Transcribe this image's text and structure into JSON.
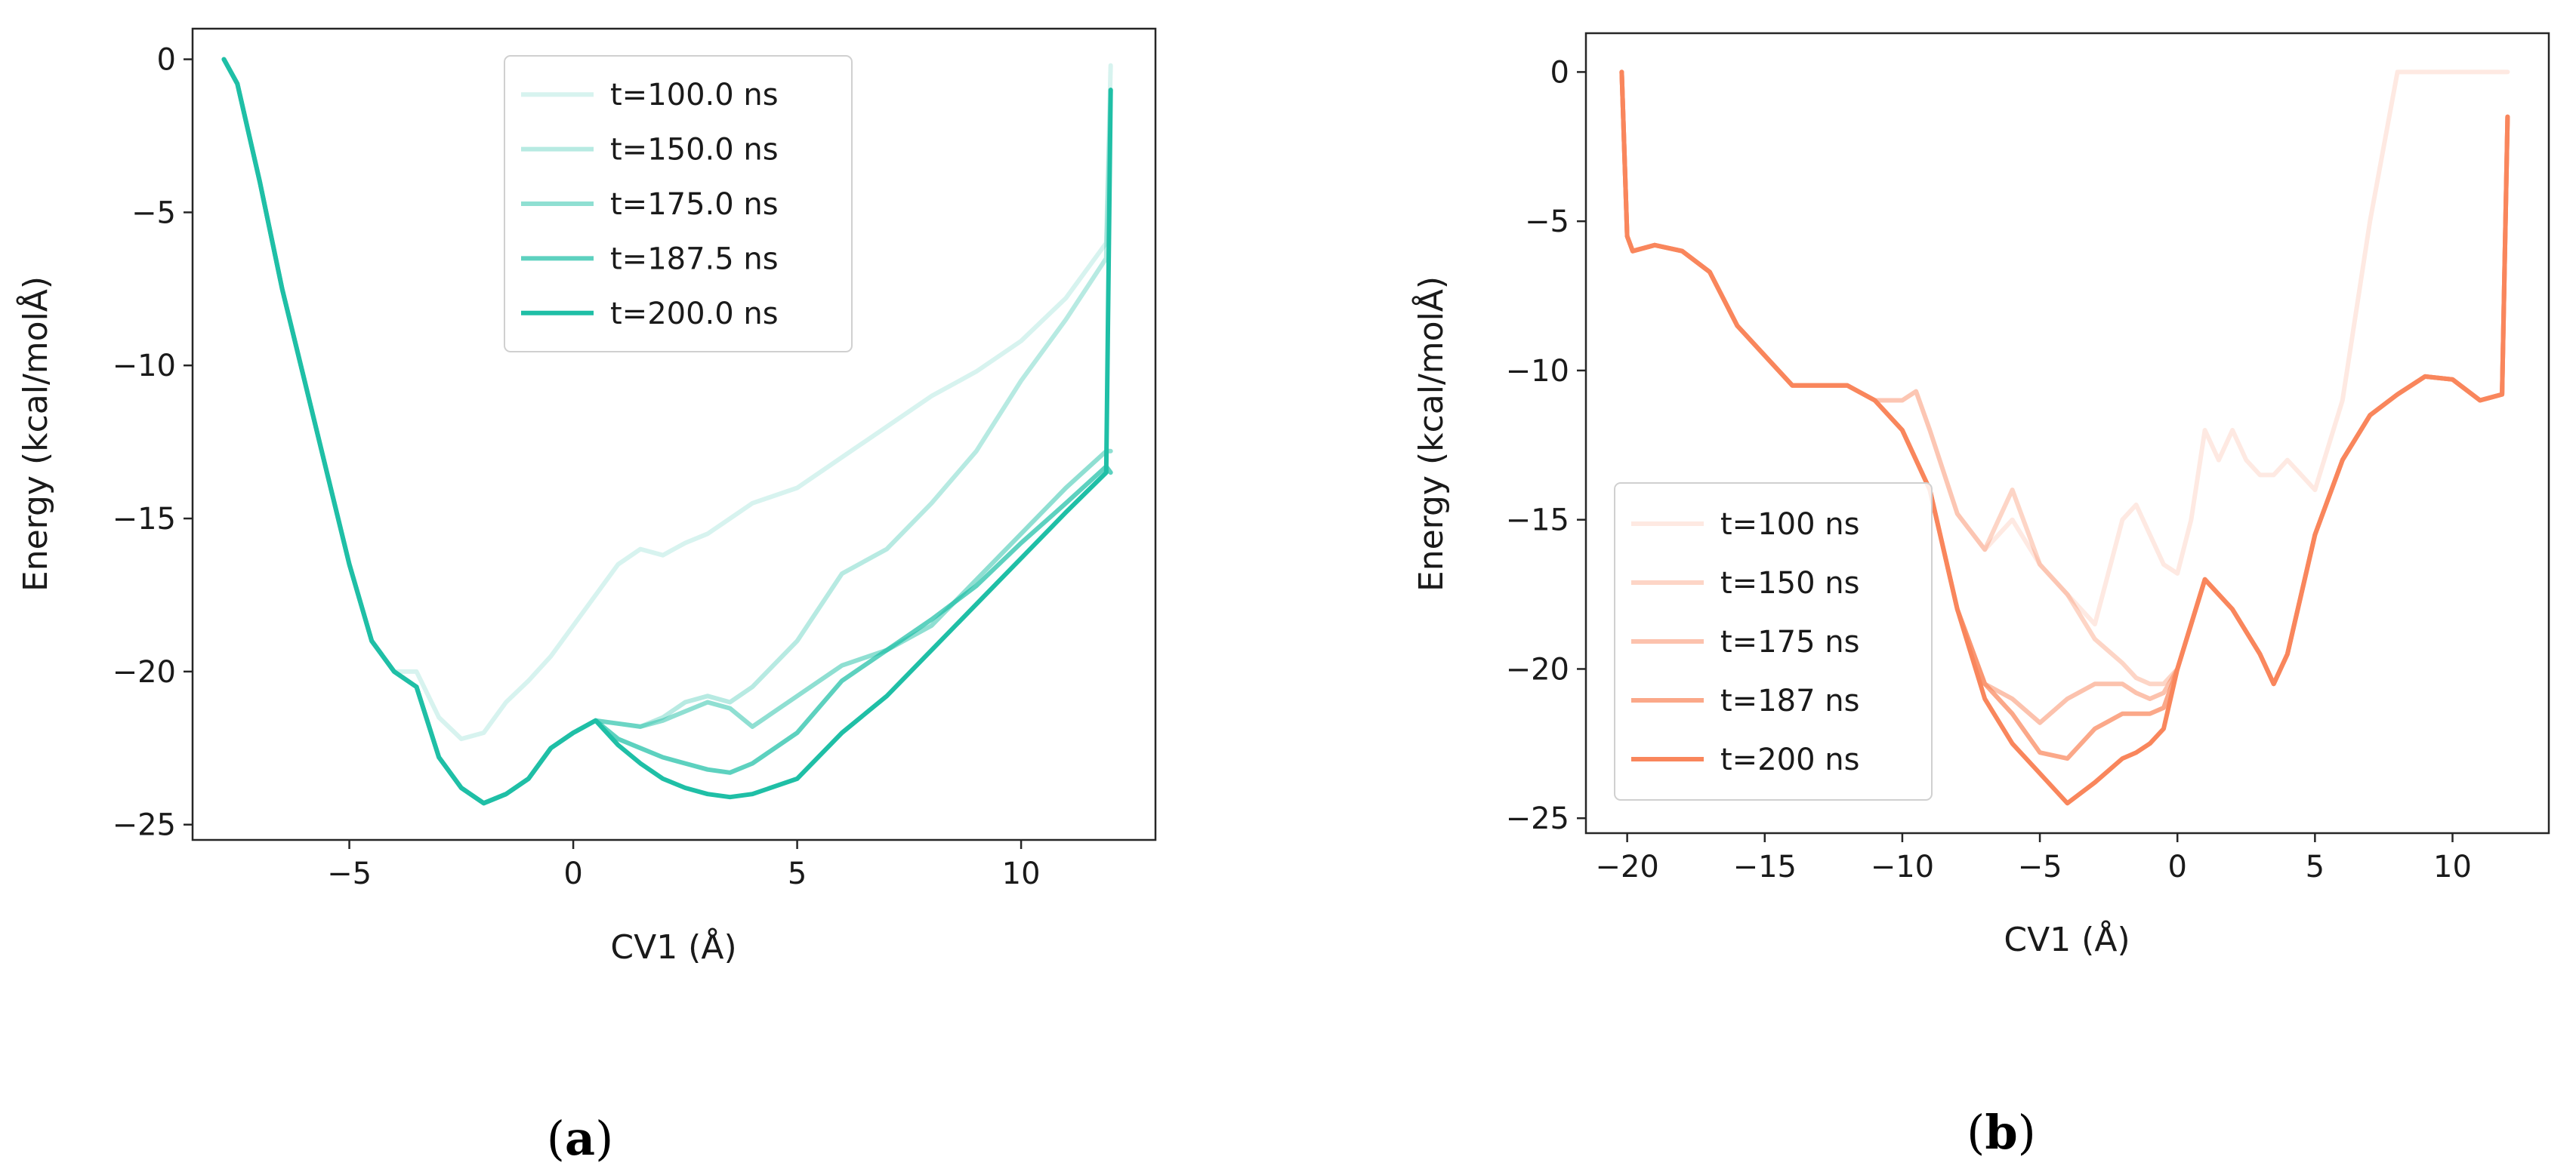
{
  "figure": {
    "panel_a_label": "a",
    "panel_b_label": "b"
  },
  "chart_data": [
    {
      "type": "line",
      "panel": "a",
      "title": "",
      "xlabel": "CV1 (Å)",
      "ylabel": "Energy (kcal/molÅ)",
      "xlim": [
        -8.5,
        13.0
      ],
      "ylim": [
        -25.5,
        1.0
      ],
      "xticks": [
        -5,
        0,
        5,
        10
      ],
      "yticks": [
        0,
        -5,
        -10,
        -15,
        -20,
        -25
      ],
      "grid": false,
      "legend_position": "top-center",
      "base_color": "#1fbfa6",
      "series": [
        {
          "name": "t=100.0 ns",
          "opacity": 0.18,
          "x": [
            -7.8,
            -7.5,
            -7.0,
            -6.5,
            -6.0,
            -5.5,
            -5.0,
            -4.5,
            -4.0,
            -3.5,
            -3.0,
            -2.5,
            -2.0,
            -1.5,
            -1.0,
            -0.5,
            0.0,
            0.5,
            1.0,
            1.5,
            2.0,
            2.5,
            3.0,
            3.5,
            4.0,
            5.0,
            6.0,
            7.0,
            8.0,
            9.0,
            10.0,
            11.0,
            11.9,
            12.0
          ],
          "values": [
            0.0,
            -0.8,
            -4.0,
            -7.5,
            -10.5,
            -13.5,
            -16.5,
            -19.0,
            -20.0,
            -20.0,
            -21.5,
            -22.2,
            -22.0,
            -21.0,
            -20.3,
            -19.5,
            -18.5,
            -17.5,
            -16.5,
            -16.0,
            -16.2,
            -15.8,
            -15.5,
            -15.0,
            -14.5,
            -14.0,
            -13.0,
            -12.0,
            -11.0,
            -10.2,
            -9.2,
            -7.8,
            -6.0,
            -0.2
          ]
        },
        {
          "name": "t=150.0 ns",
          "opacity": 0.32,
          "x": [
            -7.8,
            -7.5,
            -7.0,
            -6.5,
            -6.0,
            -5.5,
            -5.0,
            -4.5,
            -4.0,
            -3.5,
            -3.0,
            -2.5,
            -2.0,
            -1.5,
            -1.0,
            -0.5,
            0.0,
            0.5,
            1.0,
            1.5,
            2.0,
            2.5,
            3.0,
            3.5,
            4.0,
            5.0,
            6.0,
            7.0,
            8.0,
            9.0,
            10.0,
            11.0,
            11.9,
            12.0
          ],
          "values": [
            0.0,
            -0.8,
            -4.0,
            -7.5,
            -10.5,
            -13.5,
            -16.5,
            -19.0,
            -20.0,
            -20.5,
            -22.8,
            -23.8,
            -24.3,
            -24.0,
            -23.5,
            -22.5,
            -22.0,
            -21.6,
            -21.7,
            -21.8,
            -21.5,
            -21.0,
            -20.8,
            -21.0,
            -20.5,
            -19.0,
            -16.8,
            -16.0,
            -14.5,
            -12.8,
            -10.5,
            -8.5,
            -6.5,
            -1.0
          ]
        },
        {
          "name": "t=175.0 ns",
          "opacity": 0.5,
          "x": [
            -7.8,
            -7.5,
            -7.0,
            -6.5,
            -6.0,
            -5.5,
            -5.0,
            -4.5,
            -4.0,
            -3.5,
            -3.0,
            -2.5,
            -2.0,
            -1.5,
            -1.0,
            -0.5,
            0.0,
            0.5,
            1.0,
            1.5,
            2.0,
            2.5,
            3.0,
            3.5,
            4.0,
            5.0,
            6.0,
            7.0,
            8.0,
            9.0,
            10.0,
            11.0,
            11.9,
            12.0
          ],
          "values": [
            0.0,
            -0.8,
            -4.0,
            -7.5,
            -10.5,
            -13.5,
            -16.5,
            -19.0,
            -20.0,
            -20.5,
            -22.8,
            -23.8,
            -24.3,
            -24.0,
            -23.5,
            -22.5,
            -22.0,
            -21.6,
            -21.7,
            -21.8,
            -21.6,
            -21.3,
            -21.0,
            -21.2,
            -21.8,
            -20.8,
            -19.8,
            -19.3,
            -18.5,
            -17.0,
            -15.5,
            -14.0,
            -12.8,
            -12.8
          ]
        },
        {
          "name": "t=187.5 ns",
          "opacity": 0.72,
          "x": [
            -7.8,
            -7.5,
            -7.0,
            -6.5,
            -6.0,
            -5.5,
            -5.0,
            -4.5,
            -4.0,
            -3.5,
            -3.0,
            -2.5,
            -2.0,
            -1.5,
            -1.0,
            -0.5,
            0.0,
            0.5,
            1.0,
            1.5,
            2.0,
            2.5,
            3.0,
            3.5,
            4.0,
            5.0,
            6.0,
            7.0,
            8.0,
            9.0,
            10.0,
            11.0,
            11.9,
            12.0
          ],
          "values": [
            0.0,
            -0.8,
            -4.0,
            -7.5,
            -10.5,
            -13.5,
            -16.5,
            -19.0,
            -20.0,
            -20.5,
            -22.8,
            -23.8,
            -24.3,
            -24.0,
            -23.5,
            -22.5,
            -22.0,
            -21.6,
            -22.2,
            -22.5,
            -22.8,
            -23.0,
            -23.2,
            -23.3,
            -23.0,
            -22.0,
            -20.3,
            -19.3,
            -18.3,
            -17.2,
            -15.8,
            -14.5,
            -13.3,
            -13.5
          ]
        },
        {
          "name": "t=200.0 ns",
          "opacity": 1.0,
          "x": [
            -7.8,
            -7.5,
            -7.0,
            -6.5,
            -6.0,
            -5.5,
            -5.0,
            -4.5,
            -4.0,
            -3.5,
            -3.0,
            -2.5,
            -2.0,
            -1.5,
            -1.0,
            -0.5,
            0.0,
            0.5,
            1.0,
            1.5,
            2.0,
            2.5,
            3.0,
            3.5,
            4.0,
            5.0,
            6.0,
            7.0,
            8.0,
            9.0,
            10.0,
            11.0,
            11.9,
            12.0
          ],
          "values": [
            0.0,
            -0.8,
            -4.0,
            -7.5,
            -10.5,
            -13.5,
            -16.5,
            -19.0,
            -20.0,
            -20.5,
            -22.8,
            -23.8,
            -24.3,
            -24.0,
            -23.5,
            -22.5,
            -22.0,
            -21.6,
            -22.4,
            -23.0,
            -23.5,
            -23.8,
            -24.0,
            -24.1,
            -24.0,
            -23.5,
            -22.0,
            -20.8,
            -19.3,
            -17.8,
            -16.3,
            -14.8,
            -13.5,
            -1.0
          ]
        }
      ]
    },
    {
      "type": "line",
      "panel": "b",
      "title": "",
      "xlabel": "CV1 (Å)",
      "ylabel": "Energy (kcal/molÅ)",
      "xlim": [
        -21.5,
        13.5
      ],
      "ylim": [
        -25.5,
        1.3
      ],
      "xticks": [
        -20,
        -15,
        -10,
        -5,
        0,
        5,
        10
      ],
      "yticks": [
        0,
        -5,
        -10,
        -15,
        -20,
        -25
      ],
      "grid": false,
      "legend_position": "bottom-left",
      "base_color": "#f9865c",
      "series": [
        {
          "name": "t=100 ns",
          "opacity": 0.18,
          "x": [
            -20.2,
            -20.0,
            -19.8,
            -19.0,
            -18.0,
            -17.0,
            -16.0,
            -15.0,
            -14.0,
            -13.0,
            -12.0,
            -11.0,
            -10.0,
            -9.5,
            -9.0,
            -8.0,
            -7.0,
            -6.0,
            -5.0,
            -4.0,
            -3.0,
            -2.0,
            -1.5,
            -1.0,
            -0.5,
            0.0,
            0.5,
            1.0,
            1.5,
            2.0,
            2.5,
            3.0,
            3.5,
            4.0,
            5.0,
            6.0,
            7.0,
            8.0,
            8.5,
            12.0
          ],
          "values": [
            0.0,
            -5.5,
            -6.0,
            -5.8,
            -6.0,
            -6.7,
            -8.5,
            -9.5,
            -10.5,
            -10.5,
            -10.5,
            -11.0,
            -11.0,
            -10.7,
            -12.0,
            -14.8,
            -16.0,
            -15.0,
            -16.5,
            -17.5,
            -18.5,
            -15.0,
            -14.5,
            -15.5,
            -16.5,
            -16.8,
            -15.0,
            -12.0,
            -13.0,
            -12.0,
            -13.0,
            -13.5,
            -13.5,
            -13.0,
            -14.0,
            -11.0,
            -5.0,
            0.0,
            0.0,
            0.0
          ]
        },
        {
          "name": "t=150 ns",
          "opacity": 0.35,
          "x": [
            -20.2,
            -20.0,
            -19.8,
            -19.0,
            -18.0,
            -17.0,
            -16.0,
            -15.0,
            -14.0,
            -13.0,
            -12.0,
            -11.0,
            -10.0,
            -9.5,
            -9.0,
            -8.0,
            -7.0,
            -6.0,
            -5.0,
            -4.0,
            -3.0,
            -2.0,
            -1.5,
            -1.0,
            -0.5,
            0.0,
            1.0,
            2.0,
            3.0,
            3.5,
            4.0,
            5.0,
            6.0,
            7.0,
            8.0,
            9.0,
            10.0,
            11.0,
            11.8,
            12.0
          ],
          "values": [
            0.0,
            -5.5,
            -6.0,
            -5.8,
            -6.0,
            -6.7,
            -8.5,
            -9.5,
            -10.5,
            -10.5,
            -10.5,
            -11.0,
            -11.0,
            -10.7,
            -12.0,
            -14.8,
            -16.0,
            -14.0,
            -16.5,
            -17.5,
            -19.0,
            -19.8,
            -20.3,
            -20.5,
            -20.5,
            -20.0,
            -17.0,
            -18.0,
            -19.5,
            -20.5,
            -19.5,
            -15.5,
            -13.0,
            -11.5,
            -10.8,
            -10.2,
            -10.3,
            -11.0,
            -10.8,
            -1.5
          ]
        },
        {
          "name": "t=175 ns",
          "opacity": 0.5,
          "x": [
            -20.2,
            -20.0,
            -19.8,
            -19.0,
            -18.0,
            -17.0,
            -16.0,
            -15.0,
            -14.0,
            -13.0,
            -12.0,
            -11.0,
            -10.0,
            -9.0,
            -8.0,
            -7.0,
            -6.0,
            -5.0,
            -4.0,
            -3.0,
            -2.0,
            -1.5,
            -1.0,
            -0.5,
            0.0,
            1.0,
            2.0,
            3.0,
            3.5,
            4.0,
            5.0,
            6.0,
            7.0,
            8.0,
            9.0,
            10.0,
            11.0,
            11.8,
            12.0
          ],
          "values": [
            0.0,
            -5.5,
            -6.0,
            -5.8,
            -6.0,
            -6.7,
            -8.5,
            -9.5,
            -10.5,
            -10.5,
            -10.5,
            -11.0,
            -12.0,
            -14.0,
            -18.0,
            -20.5,
            -21.0,
            -21.8,
            -21.0,
            -20.5,
            -20.5,
            -20.8,
            -21.0,
            -20.8,
            -20.0,
            -17.0,
            -18.0,
            -19.5,
            -20.5,
            -19.5,
            -15.5,
            -13.0,
            -11.5,
            -10.8,
            -10.2,
            -10.3,
            -11.0,
            -10.8,
            -1.5
          ]
        },
        {
          "name": "t=187 ns",
          "opacity": 0.72,
          "x": [
            -20.2,
            -20.0,
            -19.8,
            -19.0,
            -18.0,
            -17.0,
            -16.0,
            -15.0,
            -14.0,
            -13.0,
            -12.0,
            -11.0,
            -10.0,
            -9.0,
            -8.0,
            -7.0,
            -6.0,
            -5.0,
            -4.0,
            -3.0,
            -2.0,
            -1.5,
            -1.0,
            -0.5,
            0.0,
            1.0,
            2.0,
            3.0,
            3.5,
            4.0,
            5.0,
            6.0,
            7.0,
            8.0,
            9.0,
            10.0,
            11.0,
            11.8,
            12.0
          ],
          "values": [
            0.0,
            -5.5,
            -6.0,
            -5.8,
            -6.0,
            -6.7,
            -8.5,
            -9.5,
            -10.5,
            -10.5,
            -10.5,
            -11.0,
            -12.0,
            -14.0,
            -18.0,
            -20.5,
            -21.5,
            -22.8,
            -23.0,
            -22.0,
            -21.5,
            -21.5,
            -21.5,
            -21.3,
            -20.0,
            -17.0,
            -18.0,
            -19.5,
            -20.5,
            -19.5,
            -15.5,
            -13.0,
            -11.5,
            -10.8,
            -10.2,
            -10.3,
            -11.0,
            -10.8,
            -1.5
          ]
        },
        {
          "name": "t=200 ns",
          "opacity": 1.0,
          "x": [
            -20.2,
            -20.0,
            -19.8,
            -19.0,
            -18.0,
            -17.0,
            -16.0,
            -15.0,
            -14.0,
            -13.0,
            -12.0,
            -11.0,
            -10.0,
            -9.0,
            -8.0,
            -7.0,
            -6.0,
            -5.0,
            -4.0,
            -3.0,
            -2.0,
            -1.5,
            -1.0,
            -0.5,
            0.0,
            1.0,
            2.0,
            3.0,
            3.5,
            4.0,
            5.0,
            6.0,
            7.0,
            8.0,
            9.0,
            10.0,
            11.0,
            11.8,
            12.0
          ],
          "values": [
            0.0,
            -5.5,
            -6.0,
            -5.8,
            -6.0,
            -6.7,
            -8.5,
            -9.5,
            -10.5,
            -10.5,
            -10.5,
            -11.0,
            -12.0,
            -14.0,
            -18.0,
            -21.0,
            -22.5,
            -23.5,
            -24.5,
            -23.8,
            -23.0,
            -22.8,
            -22.5,
            -22.0,
            -20.0,
            -17.0,
            -18.0,
            -19.5,
            -20.5,
            -19.5,
            -15.5,
            -13.0,
            -11.5,
            -10.8,
            -10.2,
            -10.3,
            -11.0,
            -10.8,
            -1.5
          ]
        }
      ]
    }
  ]
}
